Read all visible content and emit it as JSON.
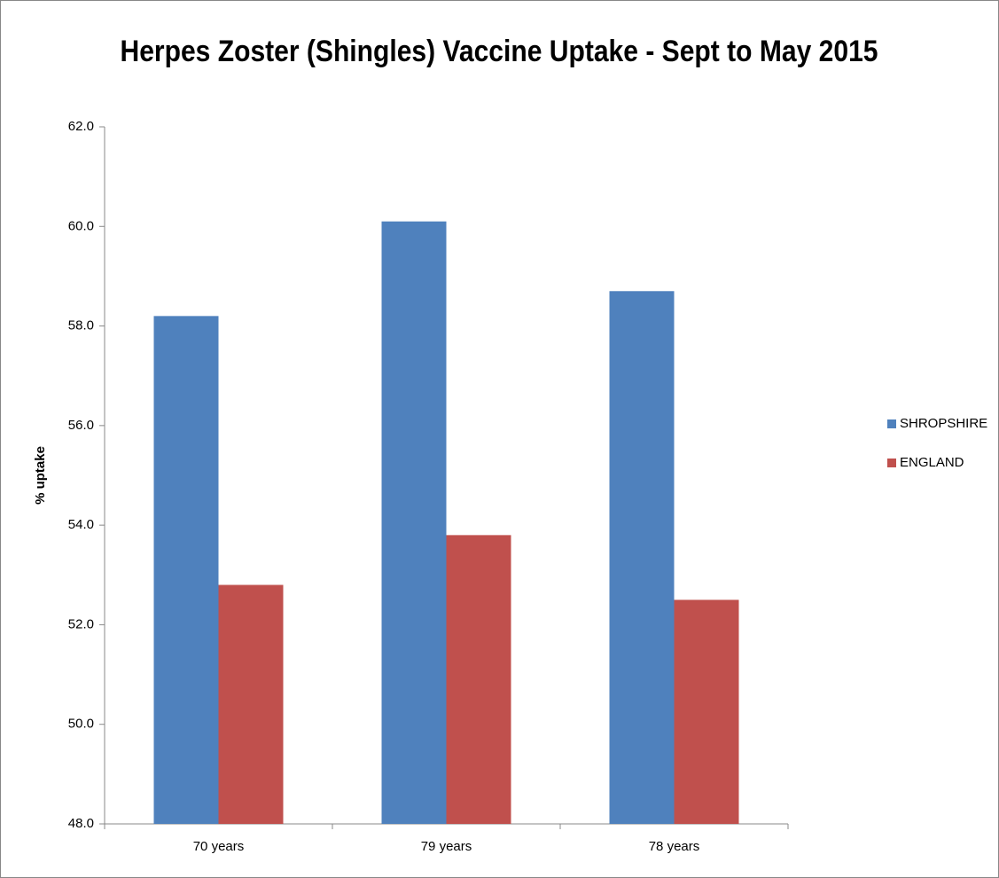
{
  "chart_data": {
    "type": "bar",
    "title": "Herpes Zoster (Shingles) Vaccine Uptake - Sept to May 2015",
    "y_label": "% uptake",
    "categories": [
      "70 years",
      "79 years",
      "78 years"
    ],
    "series": [
      {
        "name": "SHROPSHIRE",
        "color": "#4f81bd",
        "values": [
          58.2,
          60.1,
          58.7
        ]
      },
      {
        "name": "ENGLAND",
        "color": "#c0504d",
        "values": [
          52.8,
          53.8,
          52.5
        ]
      }
    ],
    "ylim": [
      48,
      62
    ],
    "yticks": [
      {
        "value": 48,
        "label": "48.0"
      },
      {
        "value": 50,
        "label": "50.0"
      },
      {
        "value": 52,
        "label": "52.0"
      },
      {
        "value": 54,
        "label": "54.0"
      },
      {
        "value": 56,
        "label": "56.0"
      },
      {
        "value": 58,
        "label": "58.0"
      },
      {
        "value": 60,
        "label": "60.0"
      },
      {
        "value": 62,
        "label": "62.0"
      }
    ],
    "grid": false,
    "legend": "right"
  }
}
